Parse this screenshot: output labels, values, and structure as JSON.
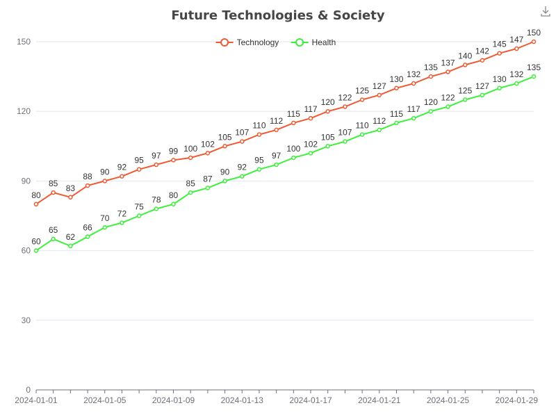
{
  "chart_data": {
    "type": "line",
    "title": "Future Technologies & Society",
    "x": [
      "2024-01-01",
      "2024-01-02",
      "2024-01-03",
      "2024-01-04",
      "2024-01-05",
      "2024-01-06",
      "2024-01-07",
      "2024-01-08",
      "2024-01-09",
      "2024-01-10",
      "2024-01-11",
      "2024-01-12",
      "2024-01-13",
      "2024-01-14",
      "2024-01-15",
      "2024-01-16",
      "2024-01-17",
      "2024-01-18",
      "2024-01-19",
      "2024-01-20",
      "2024-01-21",
      "2024-01-22",
      "2024-01-23",
      "2024-01-24",
      "2024-01-25",
      "2024-01-26",
      "2024-01-27",
      "2024-01-28",
      "2024-01-29",
      "2024-01-30"
    ],
    "x_tick_labels": [
      "2024-01-01",
      "2024-01-05",
      "2024-01-09",
      "2024-01-13",
      "2024-01-17",
      "2024-01-21",
      "2024-01-25",
      "2024-01-29"
    ],
    "ylim": [
      0,
      150
    ],
    "y_ticks": [
      0,
      30,
      60,
      90,
      120,
      150
    ],
    "grid": true,
    "legend_position": "top-center",
    "series": [
      {
        "name": "Technology",
        "color": "#f05a32",
        "values": [
          80,
          85,
          83,
          88,
          90,
          92,
          95,
          97,
          99,
          100,
          102,
          105,
          107,
          110,
          112,
          115,
          117,
          120,
          122,
          125,
          127,
          130,
          132,
          135,
          137,
          140,
          142,
          145,
          147,
          150
        ]
      },
      {
        "name": "Health",
        "color": "#3cf03c",
        "values": [
          60,
          65,
          62,
          66,
          70,
          72,
          75,
          78,
          80,
          85,
          87,
          90,
          92,
          95,
          97,
          100,
          102,
          105,
          107,
          110,
          112,
          115,
          117,
          120,
          122,
          125,
          127,
          130,
          132,
          135
        ]
      }
    ]
  },
  "toolbar": {
    "download_icon": "download-icon"
  }
}
